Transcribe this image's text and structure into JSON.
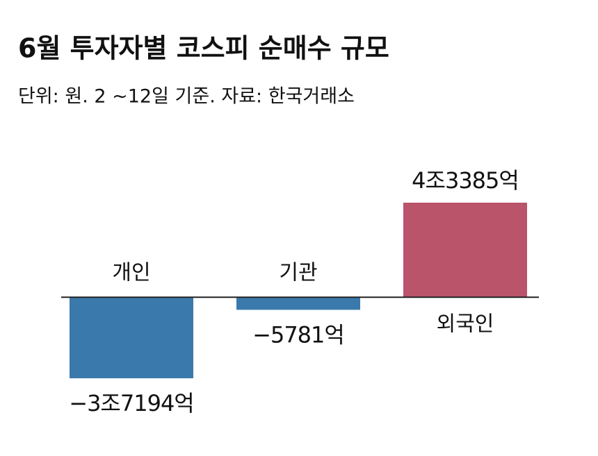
{
  "chart_data": {
    "type": "bar",
    "title": "6월 투자자별 코스피 순매수 규모",
    "subtitle": "단위: 원. 2 ~12일 기준.  자료: 한국거래소",
    "categories": [
      "개인",
      "기관",
      "외국인"
    ],
    "values": [
      -37194,
      -5781,
      43385
    ],
    "value_labels": [
      "−3조7194억",
      "−5781억",
      "4조3385억"
    ],
    "positive_color": "#b9546a",
    "negative_color": "#3a79ab"
  }
}
